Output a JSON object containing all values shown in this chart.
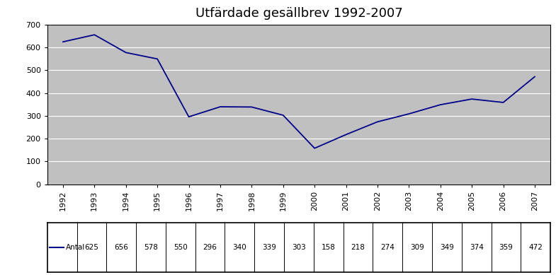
{
  "title": "Utfärdade gesällbrev 1992-2007",
  "years": [
    1992,
    1993,
    1994,
    1995,
    1996,
    1997,
    1998,
    1999,
    2000,
    2001,
    2002,
    2003,
    2004,
    2005,
    2006,
    2007
  ],
  "values": [
    625,
    656,
    578,
    550,
    296,
    340,
    339,
    303,
    158,
    218,
    274,
    309,
    349,
    374,
    359,
    472
  ],
  "line_color": "#00008B",
  "plot_bg_color": "#C0C0C0",
  "fig_bg_color": "#FFFFFF",
  "ylim": [
    0,
    700
  ],
  "yticks": [
    0,
    100,
    200,
    300,
    400,
    500,
    600,
    700
  ],
  "legend_label": "Antal",
  "title_fontsize": 13,
  "tick_fontsize": 8,
  "table_fontsize": 7.5
}
